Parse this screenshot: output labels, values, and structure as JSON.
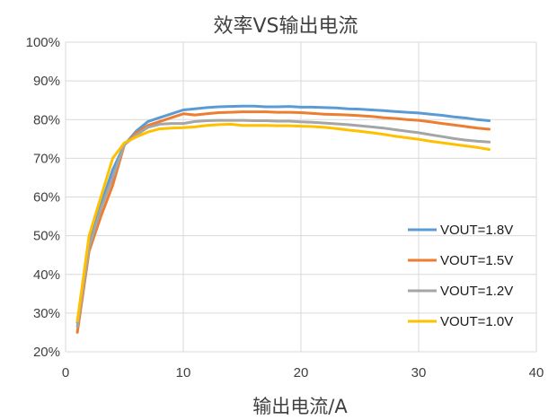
{
  "chart_data": {
    "type": "line",
    "title": "效率VS输出电流",
    "xlabel": "输出电流/A",
    "ylabel": "",
    "xlim": [
      0,
      40
    ],
    "ylim": [
      20,
      100
    ],
    "x_ticks": [
      "0",
      "10",
      "20",
      "30",
      "40"
    ],
    "y_ticks": [
      "20%",
      "30%",
      "40%",
      "50%",
      "60%",
      "70%",
      "80%",
      "90%",
      "100%"
    ],
    "grid": true,
    "legend_position": "bottom-right",
    "x": [
      1,
      2,
      3,
      4,
      5,
      6,
      7,
      8,
      9,
      10,
      11,
      12,
      13,
      14,
      15,
      16,
      17,
      18,
      19,
      20,
      21,
      22,
      23,
      24,
      25,
      26,
      27,
      28,
      29,
      30,
      31,
      32,
      33,
      34,
      35,
      36
    ],
    "series": [
      {
        "name": "VOUT=1.8V",
        "color": "#5b9bd5",
        "values": [
          27.5,
          48,
          58,
          67,
          73.5,
          77,
          79.5,
          80.5,
          81.5,
          82.5,
          82.8,
          83.1,
          83.3,
          83.4,
          83.5,
          83.5,
          83.3,
          83.3,
          83.4,
          83.2,
          83.2,
          83.1,
          83.0,
          82.8,
          82.7,
          82.5,
          82.3,
          82.1,
          81.9,
          81.7,
          81.4,
          81.1,
          80.7,
          80.4,
          80.0,
          79.7
        ]
      },
      {
        "name": "VOUT=1.5V",
        "color": "#ed7d31",
        "values": [
          25,
          46,
          55,
          63,
          73.5,
          76.5,
          78.5,
          79.5,
          80.5,
          81.5,
          81.2,
          81.5,
          81.8,
          81.9,
          82.0,
          82.0,
          82.0,
          81.9,
          81.9,
          81.8,
          81.6,
          81.4,
          81.3,
          81.2,
          81.0,
          80.8,
          80.5,
          80.3,
          80.0,
          79.8,
          79.4,
          79.0,
          78.6,
          78.2,
          77.8,
          77.5
        ]
      },
      {
        "name": "VOUT=1.2V",
        "color": "#a5a5a5",
        "values": [
          26.5,
          47,
          57,
          65,
          73.5,
          76,
          78,
          78.8,
          79.0,
          79.0,
          79.5,
          79.7,
          79.8,
          79.8,
          79.8,
          79.7,
          79.7,
          79.6,
          79.6,
          79.4,
          79.3,
          79.1,
          78.9,
          78.7,
          78.4,
          78.1,
          77.8,
          77.4,
          77.0,
          76.6,
          76.1,
          75.6,
          75.1,
          74.7,
          74.4,
          74.2
        ]
      },
      {
        "name": "VOUT=1.0V",
        "color": "#ffc000",
        "values": [
          28,
          50,
          60,
          70,
          74,
          75.5,
          76.8,
          77.6,
          77.8,
          77.9,
          78.1,
          78.5,
          78.7,
          78.8,
          78.5,
          78.5,
          78.5,
          78.4,
          78.4,
          78.3,
          78.2,
          78.0,
          77.7,
          77.3,
          77.0,
          76.6,
          76.2,
          75.7,
          75.3,
          74.9,
          74.4,
          74.0,
          73.6,
          73.2,
          72.8,
          72.3
        ]
      }
    ]
  }
}
